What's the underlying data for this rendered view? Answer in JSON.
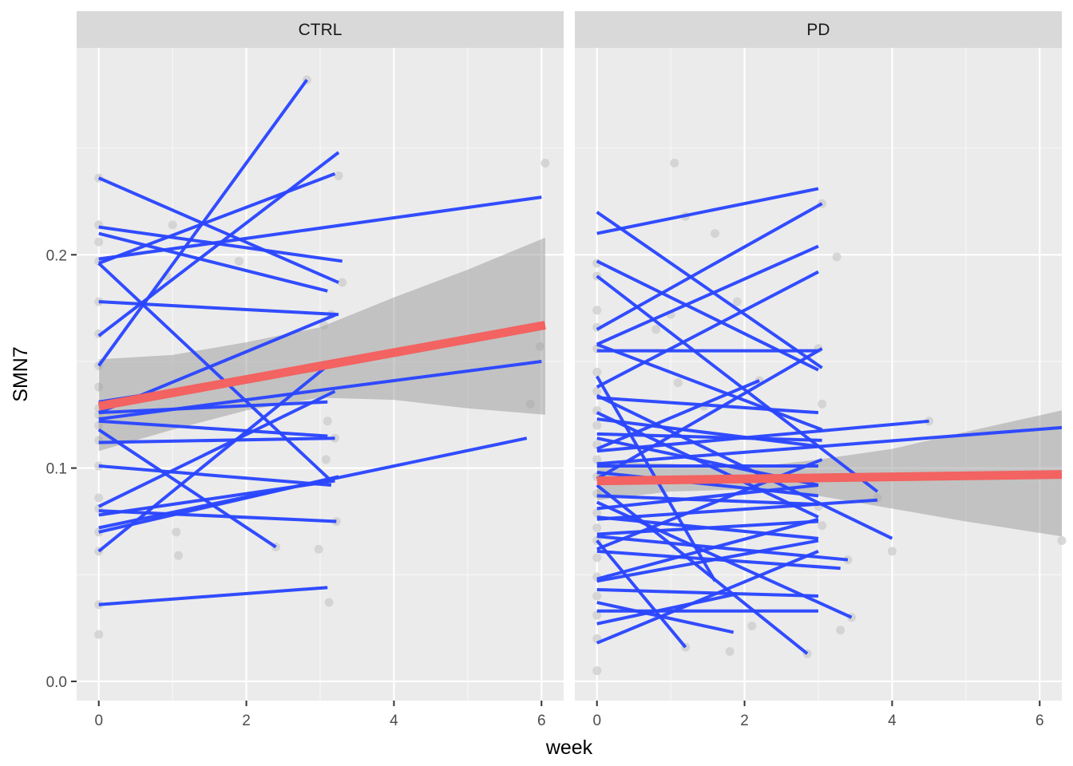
{
  "chart_data": {
    "type": "line",
    "xlabel": "week",
    "ylabel": "SMN7",
    "xlim": [
      -0.3,
      6.3
    ],
    "ylim": [
      -0.009,
      0.297
    ],
    "x_ticks": [
      0,
      2,
      4,
      6
    ],
    "y_ticks": [
      0.0,
      0.1,
      0.2
    ],
    "grid": true,
    "colors": {
      "panel_bg": "#ebebeb",
      "strip_bg": "#d9d9d9",
      "grid_major": "#ffffff",
      "subject_line": "#2a46ff",
      "trend_line": "#f26361",
      "ribbon": "#999999",
      "point": "#cccccc"
    },
    "facets": [
      {
        "label": "CTRL",
        "points": [
          {
            "x": 0,
            "y": 0.236
          },
          {
            "x": 0,
            "y": 0.214
          },
          {
            "x": 0,
            "y": 0.206
          },
          {
            "x": 0,
            "y": 0.197
          },
          {
            "x": 0,
            "y": 0.178
          },
          {
            "x": 0,
            "y": 0.163
          },
          {
            "x": 0,
            "y": 0.148
          },
          {
            "x": 0,
            "y": 0.138
          },
          {
            "x": 0,
            "y": 0.128
          },
          {
            "x": 0,
            "y": 0.125
          },
          {
            "x": 0,
            "y": 0.12
          },
          {
            "x": 0,
            "y": 0.113
          },
          {
            "x": 0,
            "y": 0.101
          },
          {
            "x": 0,
            "y": 0.086
          },
          {
            "x": 0,
            "y": 0.081
          },
          {
            "x": 0,
            "y": 0.07
          },
          {
            "x": 0,
            "y": 0.061
          },
          {
            "x": 0,
            "y": 0.036
          },
          {
            "x": 0,
            "y": 0.022
          },
          {
            "x": 0.92,
            "y": 0.19
          },
          {
            "x": 1.0,
            "y": 0.214
          },
          {
            "x": 1.05,
            "y": 0.07
          },
          {
            "x": 1.08,
            "y": 0.059
          },
          {
            "x": 1.9,
            "y": 0.197
          },
          {
            "x": 2.82,
            "y": 0.282
          },
          {
            "x": 2.4,
            "y": 0.063
          },
          {
            "x": 2.98,
            "y": 0.062
          },
          {
            "x": 3.05,
            "y": 0.167
          },
          {
            "x": 3.08,
            "y": 0.104
          },
          {
            "x": 3.1,
            "y": 0.122
          },
          {
            "x": 3.12,
            "y": 0.037
          },
          {
            "x": 3.15,
            "y": 0.172
          },
          {
            "x": 3.2,
            "y": 0.114
          },
          {
            "x": 3.22,
            "y": 0.075
          },
          {
            "x": 3.25,
            "y": 0.237
          },
          {
            "x": 3.3,
            "y": 0.187
          },
          {
            "x": 5.85,
            "y": 0.13
          },
          {
            "x": 5.98,
            "y": 0.157
          },
          {
            "x": 6.05,
            "y": 0.243
          }
        ],
        "subjects": [
          {
            "x": [
              0,
              3.25
            ],
            "y": [
              0.236,
              0.187
            ]
          },
          {
            "x": [
              0,
              3.2
            ],
            "y": [
              0.196,
              0.238
            ]
          },
          {
            "x": [
              0,
              3.3
            ],
            "y": [
              0.213,
              0.197
            ]
          },
          {
            "x": [
              0,
              3.1
            ],
            "y": [
              0.21,
              0.183
            ]
          },
          {
            "x": [
              0,
              3.25
            ],
            "y": [
              0.178,
              0.172
            ]
          },
          {
            "x": [
              0,
              3.15
            ],
            "y": [
              0.196,
              0.094
            ]
          },
          {
            "x": [
              0,
              3.25
            ],
            "y": [
              0.162,
              0.248
            ]
          },
          {
            "x": [
              0,
              2.82
            ],
            "y": [
              0.148,
              0.282
            ]
          },
          {
            "x": [
              0,
              2.4
            ],
            "y": [
              0.118,
              0.063
            ]
          },
          {
            "x": [
              0,
              3.2
            ],
            "y": [
              0.131,
              0.148
            ]
          },
          {
            "x": [
              0,
              3.22
            ],
            "y": [
              0.126,
              0.172
            ]
          },
          {
            "x": [
              0,
              3.1
            ],
            "y": [
              0.122,
              0.115
            ]
          },
          {
            "x": [
              0,
              3.1
            ],
            "y": [
              0.126,
              0.131
            ]
          },
          {
            "x": [
              0,
              3.2
            ],
            "y": [
              0.112,
              0.114
            ]
          },
          {
            "x": [
              0,
              3.15
            ],
            "y": [
              0.101,
              0.092
            ]
          },
          {
            "x": [
              0,
              3.2
            ],
            "y": [
              0.082,
              0.136
            ]
          },
          {
            "x": [
              0,
              3.25
            ],
            "y": [
              0.07,
              0.096
            ]
          },
          {
            "x": [
              0,
              3.22
            ],
            "y": [
              0.08,
              0.075
            ]
          },
          {
            "x": [
              0,
              3.1
            ],
            "y": [
              0.061,
              0.148
            ]
          },
          {
            "x": [
              0,
              3.2
            ],
            "y": [
              0.078,
              0.094
            ]
          },
          {
            "x": [
              0,
              5.8
            ],
            "y": [
              0.072,
              0.114
            ]
          },
          {
            "x": [
              0,
              6.0
            ],
            "y": [
              0.123,
              0.15
            ]
          },
          {
            "x": [
              0,
              6.0
            ],
            "y": [
              0.198,
              0.227
            ]
          },
          {
            "x": [
              0,
              3.1
            ],
            "y": [
              0.036,
              0.044
            ]
          }
        ],
        "trend": {
          "x": [
            0,
            6.05
          ],
          "y": [
            0.129,
            0.167
          ]
        },
        "ribbon": {
          "x": [
            0,
            1,
            2,
            3,
            4,
            5,
            6.05
          ],
          "lower": [
            0.108,
            0.118,
            0.127,
            0.133,
            0.132,
            0.128,
            0.125
          ],
          "upper": [
            0.151,
            0.153,
            0.159,
            0.166,
            0.18,
            0.193,
            0.208
          ]
        }
      },
      {
        "label": "PD",
        "points": [
          {
            "x": 0,
            "y": 0.196
          },
          {
            "x": 0,
            "y": 0.19
          },
          {
            "x": 0,
            "y": 0.174
          },
          {
            "x": 0,
            "y": 0.166
          },
          {
            "x": 0,
            "y": 0.156
          },
          {
            "x": 0,
            "y": 0.145
          },
          {
            "x": 0,
            "y": 0.136
          },
          {
            "x": 0,
            "y": 0.127
          },
          {
            "x": 0,
            "y": 0.12
          },
          {
            "x": 0,
            "y": 0.111
          },
          {
            "x": 0,
            "y": 0.104
          },
          {
            "x": 0,
            "y": 0.096
          },
          {
            "x": 0,
            "y": 0.088
          },
          {
            "x": 0,
            "y": 0.079
          },
          {
            "x": 0,
            "y": 0.072
          },
          {
            "x": 0,
            "y": 0.066
          },
          {
            "x": 0,
            "y": 0.058
          },
          {
            "x": 0,
            "y": 0.049
          },
          {
            "x": 0,
            "y": 0.04
          },
          {
            "x": 0,
            "y": 0.031
          },
          {
            "x": 0,
            "y": 0.02
          },
          {
            "x": 0,
            "y": 0.005
          },
          {
            "x": 0.8,
            "y": 0.165
          },
          {
            "x": 1.0,
            "y": 0.172
          },
          {
            "x": 1.05,
            "y": 0.243
          },
          {
            "x": 1.1,
            "y": 0.14
          },
          {
            "x": 1.2,
            "y": 0.016
          },
          {
            "x": 1.2,
            "y": 0.218
          },
          {
            "x": 1.45,
            "y": 0.129
          },
          {
            "x": 1.6,
            "y": 0.21
          },
          {
            "x": 1.8,
            "y": 0.014
          },
          {
            "x": 1.9,
            "y": 0.178
          },
          {
            "x": 2.1,
            "y": 0.026
          },
          {
            "x": 2.2,
            "y": 0.141
          },
          {
            "x": 2.85,
            "y": 0.013
          },
          {
            "x": 3.0,
            "y": 0.156
          },
          {
            "x": 3.0,
            "y": 0.082
          },
          {
            "x": 3.05,
            "y": 0.224
          },
          {
            "x": 3.05,
            "y": 0.13
          },
          {
            "x": 3.05,
            "y": 0.073
          },
          {
            "x": 3.25,
            "y": 0.199
          },
          {
            "x": 3.3,
            "y": 0.024
          },
          {
            "x": 3.4,
            "y": 0.057
          },
          {
            "x": 3.45,
            "y": 0.03
          },
          {
            "x": 3.8,
            "y": 0.086
          },
          {
            "x": 4.0,
            "y": 0.061
          },
          {
            "x": 4.5,
            "y": 0.122
          },
          {
            "x": 6.3,
            "y": 0.066
          }
        ],
        "subjects": [
          {
            "x": [
              0,
              3.0
            ],
            "y": [
              0.21,
              0.231
            ]
          },
          {
            "x": [
              0,
              3.05
            ],
            "y": [
              0.165,
              0.224
            ]
          },
          {
            "x": [
              0,
              3.0
            ],
            "y": [
              0.158,
              0.204
            ]
          },
          {
            "x": [
              0,
              3.0
            ],
            "y": [
              0.138,
              0.192
            ]
          },
          {
            "x": [
              0,
              3.05
            ],
            "y": [
              0.22,
              0.147
            ]
          },
          {
            "x": [
              0,
              3.0
            ],
            "y": [
              0.197,
              0.146
            ]
          },
          {
            "x": [
              0,
              3.8
            ],
            "y": [
              0.19,
              0.089
            ]
          },
          {
            "x": [
              0,
              3.0
            ],
            "y": [
              0.155,
              0.155
            ]
          },
          {
            "x": [
              0,
              3.05
            ],
            "y": [
              0.158,
              0.118
            ]
          },
          {
            "x": [
              0,
              3.0
            ],
            "y": [
              0.133,
              0.126
            ]
          },
          {
            "x": [
              0,
              3.05
            ],
            "y": [
              0.123,
              0.11
            ]
          },
          {
            "x": [
              0,
              4.5
            ],
            "y": [
              0.108,
              0.122
            ]
          },
          {
            "x": [
              0,
              6.3
            ],
            "y": [
              0.102,
              0.119
            ]
          },
          {
            "x": [
              0,
              3.05
            ],
            "y": [
              0.116,
              0.113
            ]
          },
          {
            "x": [
              0,
              3.0
            ],
            "y": [
              0.101,
              0.101
            ]
          },
          {
            "x": [
              0,
              3.0
            ],
            "y": [
              0.114,
              0.092
            ]
          },
          {
            "x": [
              0,
              3.0
            ],
            "y": [
              0.098,
              0.087
            ]
          },
          {
            "x": [
              0,
              4.0
            ],
            "y": [
              0.134,
              0.067
            ]
          },
          {
            "x": [
              0,
              3.8
            ],
            "y": [
              0.076,
              0.085
            ]
          },
          {
            "x": [
              0,
              3.0
            ],
            "y": [
              0.087,
              0.083
            ]
          },
          {
            "x": [
              0,
              3.0
            ],
            "y": [
              0.081,
              0.092
            ]
          },
          {
            "x": [
              0,
              3.0
            ],
            "y": [
              0.077,
              0.067
            ]
          },
          {
            "x": [
              0,
              3.0
            ],
            "y": [
              0.069,
              0.075
            ]
          },
          {
            "x": [
              0,
              3.45
            ],
            "y": [
              0.084,
              0.03
            ]
          },
          {
            "x": [
              0,
              3.4
            ],
            "y": [
              0.068,
              0.057
            ]
          },
          {
            "x": [
              0,
              3.3
            ],
            "y": [
              0.061,
              0.053
            ]
          },
          {
            "x": [
              0,
              3.0
            ],
            "y": [
              0.047,
              0.066
            ]
          },
          {
            "x": [
              0,
              3.0
            ],
            "y": [
              0.043,
              0.04
            ]
          },
          {
            "x": [
              0,
              2.85
            ],
            "y": [
              0.092,
              0.013
            ]
          },
          {
            "x": [
              0,
              3.0
            ],
            "y": [
              0.048,
              0.076
            ]
          },
          {
            "x": [
              0,
              1.2
            ],
            "y": [
              0.066,
              0.016
            ]
          },
          {
            "x": [
              0,
              3.0
            ],
            "y": [
              0.033,
              0.033
            ]
          },
          {
            "x": [
              0,
              1.9
            ],
            "y": [
              0.027,
              0.041
            ]
          },
          {
            "x": [
              0,
              3.0
            ],
            "y": [
              0.018,
              0.061
            ]
          },
          {
            "x": [
              0,
              1.85
            ],
            "y": [
              0.037,
              0.023
            ]
          },
          {
            "x": [
              0,
              3.05
            ],
            "y": [
              0.095,
              0.156
            ]
          },
          {
            "x": [
              0,
              2.2
            ],
            "y": [
              0.109,
              0.141
            ]
          },
          {
            "x": [
              0,
              3.0
            ],
            "y": [
              0.126,
              0.077
            ]
          },
          {
            "x": [
              0,
              1.6
            ],
            "y": [
              0.143,
              0.047
            ]
          },
          {
            "x": [
              0,
              3.05
            ],
            "y": [
              0.062,
              0.104
            ]
          }
        ],
        "trend": {
          "x": [
            0,
            6.3
          ],
          "y": [
            0.094,
            0.097
          ]
        },
        "ribbon": {
          "x": [
            0,
            1,
            2,
            3,
            4,
            5,
            6.3
          ],
          "lower": [
            0.085,
            0.089,
            0.09,
            0.087,
            0.081,
            0.075,
            0.068
          ],
          "upper": [
            0.103,
            0.102,
            0.1,
            0.104,
            0.109,
            0.117,
            0.127
          ]
        }
      }
    ]
  }
}
